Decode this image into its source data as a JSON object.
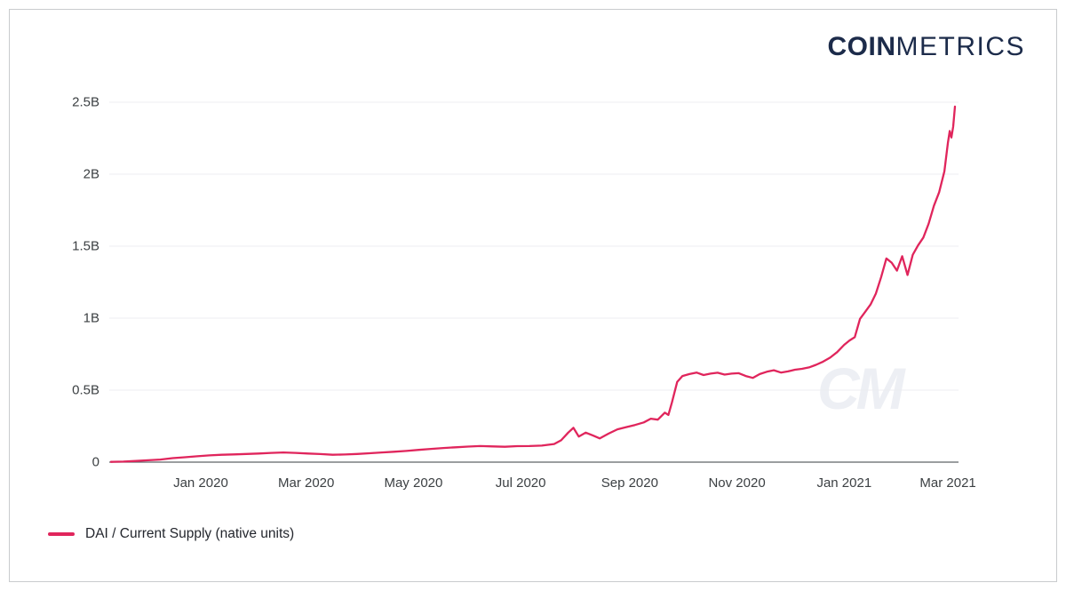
{
  "logo": {
    "bold": "COIN",
    "light": "METRICS",
    "color": "#1c2b4a"
  },
  "watermark": "CM",
  "legend": {
    "label": "DAI / Current Supply (native units)",
    "swatch_color": "#e0255c"
  },
  "colors": {
    "line": "#e0255c",
    "grid": "#ececf1",
    "axis": "#5f6368",
    "tick_label": "#3c4043",
    "watermark": "#edeff4",
    "frame_border": "#c9cbce"
  },
  "chart_data": {
    "type": "line",
    "title": "",
    "xlabel": "",
    "ylabel": "",
    "y_unit": "billions of native units",
    "ylim": [
      0,
      2.5
    ],
    "x_range": [
      "2019-11-11",
      "2021-03-05"
    ],
    "grid": "horizontal",
    "legend_position": "bottom-left",
    "y_ticks": [
      {
        "value": 0,
        "label": "0"
      },
      {
        "value": 0.5,
        "label": "0.5B"
      },
      {
        "value": 1,
        "label": "1B"
      },
      {
        "value": 1.5,
        "label": "1.5B"
      },
      {
        "value": 2,
        "label": "2B"
      },
      {
        "value": 2.5,
        "label": "2.5B"
      }
    ],
    "x_ticks": [
      {
        "date": "2020-01-01",
        "label": "Jan 2020"
      },
      {
        "date": "2020-03-01",
        "label": "Mar 2020"
      },
      {
        "date": "2020-05-01",
        "label": "May 2020"
      },
      {
        "date": "2020-07-01",
        "label": "Jul 2020"
      },
      {
        "date": "2020-09-01",
        "label": "Sep 2020"
      },
      {
        "date": "2020-11-01",
        "label": "Nov 2020"
      },
      {
        "date": "2021-01-01",
        "label": "Jan 2021"
      },
      {
        "date": "2021-03-01",
        "label": "Mar 2021"
      }
    ],
    "series": [
      {
        "name": "DAI / Current Supply (native units)",
        "color": "#e0255c",
        "unit": "billions",
        "points": [
          [
            "2019-11-11",
            0.002
          ],
          [
            "2019-11-18",
            0.004
          ],
          [
            "2019-11-25",
            0.008
          ],
          [
            "2019-12-02",
            0.013
          ],
          [
            "2019-12-09",
            0.018
          ],
          [
            "2019-12-16",
            0.028
          ],
          [
            "2019-12-23",
            0.034
          ],
          [
            "2019-12-30",
            0.041
          ],
          [
            "2020-01-06",
            0.047
          ],
          [
            "2020-01-13",
            0.051
          ],
          [
            "2020-01-20",
            0.054
          ],
          [
            "2020-01-27",
            0.057
          ],
          [
            "2020-02-03",
            0.06
          ],
          [
            "2020-02-10",
            0.064
          ],
          [
            "2020-02-17",
            0.067
          ],
          [
            "2020-02-24",
            0.064
          ],
          [
            "2020-03-02",
            0.06
          ],
          [
            "2020-03-09",
            0.056
          ],
          [
            "2020-03-16",
            0.051
          ],
          [
            "2020-03-23",
            0.053
          ],
          [
            "2020-03-30",
            0.057
          ],
          [
            "2020-04-06",
            0.062
          ],
          [
            "2020-04-13",
            0.067
          ],
          [
            "2020-04-20",
            0.072
          ],
          [
            "2020-04-27",
            0.078
          ],
          [
            "2020-05-04",
            0.085
          ],
          [
            "2020-05-11",
            0.092
          ],
          [
            "2020-05-18",
            0.098
          ],
          [
            "2020-05-25",
            0.103
          ],
          [
            "2020-06-01",
            0.108
          ],
          [
            "2020-06-08",
            0.112
          ],
          [
            "2020-06-15",
            0.109
          ],
          [
            "2020-06-22",
            0.107
          ],
          [
            "2020-06-29",
            0.111
          ],
          [
            "2020-07-06",
            0.112
          ],
          [
            "2020-07-13",
            0.115
          ],
          [
            "2020-07-20",
            0.126
          ],
          [
            "2020-07-24",
            0.152
          ],
          [
            "2020-07-28",
            0.205
          ],
          [
            "2020-07-31",
            0.238
          ],
          [
            "2020-08-03",
            0.178
          ],
          [
            "2020-08-07",
            0.205
          ],
          [
            "2020-08-11",
            0.186
          ],
          [
            "2020-08-15",
            0.165
          ],
          [
            "2020-08-20",
            0.198
          ],
          [
            "2020-08-25",
            0.228
          ],
          [
            "2020-08-30",
            0.243
          ],
          [
            "2020-09-04",
            0.258
          ],
          [
            "2020-09-09",
            0.276
          ],
          [
            "2020-09-13",
            0.302
          ],
          [
            "2020-09-17",
            0.295
          ],
          [
            "2020-09-21",
            0.344
          ],
          [
            "2020-09-23",
            0.328
          ],
          [
            "2020-09-25",
            0.415
          ],
          [
            "2020-09-28",
            0.557
          ],
          [
            "2020-10-01",
            0.598
          ],
          [
            "2020-10-05",
            0.612
          ],
          [
            "2020-10-09",
            0.622
          ],
          [
            "2020-10-13",
            0.605
          ],
          [
            "2020-10-17",
            0.615
          ],
          [
            "2020-10-21",
            0.621
          ],
          [
            "2020-10-25",
            0.608
          ],
          [
            "2020-10-29",
            0.615
          ],
          [
            "2020-11-02",
            0.618
          ],
          [
            "2020-11-06",
            0.598
          ],
          [
            "2020-11-10",
            0.585
          ],
          [
            "2020-11-14",
            0.612
          ],
          [
            "2020-11-18",
            0.628
          ],
          [
            "2020-11-22",
            0.638
          ],
          [
            "2020-11-26",
            0.622
          ],
          [
            "2020-11-30",
            0.63
          ],
          [
            "2020-12-04",
            0.642
          ],
          [
            "2020-12-08",
            0.648
          ],
          [
            "2020-12-12",
            0.658
          ],
          [
            "2020-12-16",
            0.676
          ],
          [
            "2020-12-20",
            0.698
          ],
          [
            "2020-12-24",
            0.726
          ],
          [
            "2020-12-28",
            0.764
          ],
          [
            "2021-01-01",
            0.815
          ],
          [
            "2021-01-04",
            0.845
          ],
          [
            "2021-01-07",
            0.868
          ],
          [
            "2021-01-10",
            0.995
          ],
          [
            "2021-01-13",
            1.045
          ],
          [
            "2021-01-16",
            1.095
          ],
          [
            "2021-01-19",
            1.17
          ],
          [
            "2021-01-22",
            1.285
          ],
          [
            "2021-01-25",
            1.415
          ],
          [
            "2021-01-28",
            1.385
          ],
          [
            "2021-01-31",
            1.33
          ],
          [
            "2021-02-03",
            1.43
          ],
          [
            "2021-02-06",
            1.3
          ],
          [
            "2021-02-09",
            1.44
          ],
          [
            "2021-02-12",
            1.505
          ],
          [
            "2021-02-15",
            1.56
          ],
          [
            "2021-02-18",
            1.655
          ],
          [
            "2021-02-21",
            1.78
          ],
          [
            "2021-02-24",
            1.875
          ],
          [
            "2021-02-27",
            2.02
          ],
          [
            "2021-03-01",
            2.22
          ],
          [
            "2021-03-02",
            2.3
          ],
          [
            "2021-03-03",
            2.255
          ],
          [
            "2021-03-04",
            2.33
          ],
          [
            "2021-03-05",
            2.47
          ]
        ]
      }
    ]
  }
}
